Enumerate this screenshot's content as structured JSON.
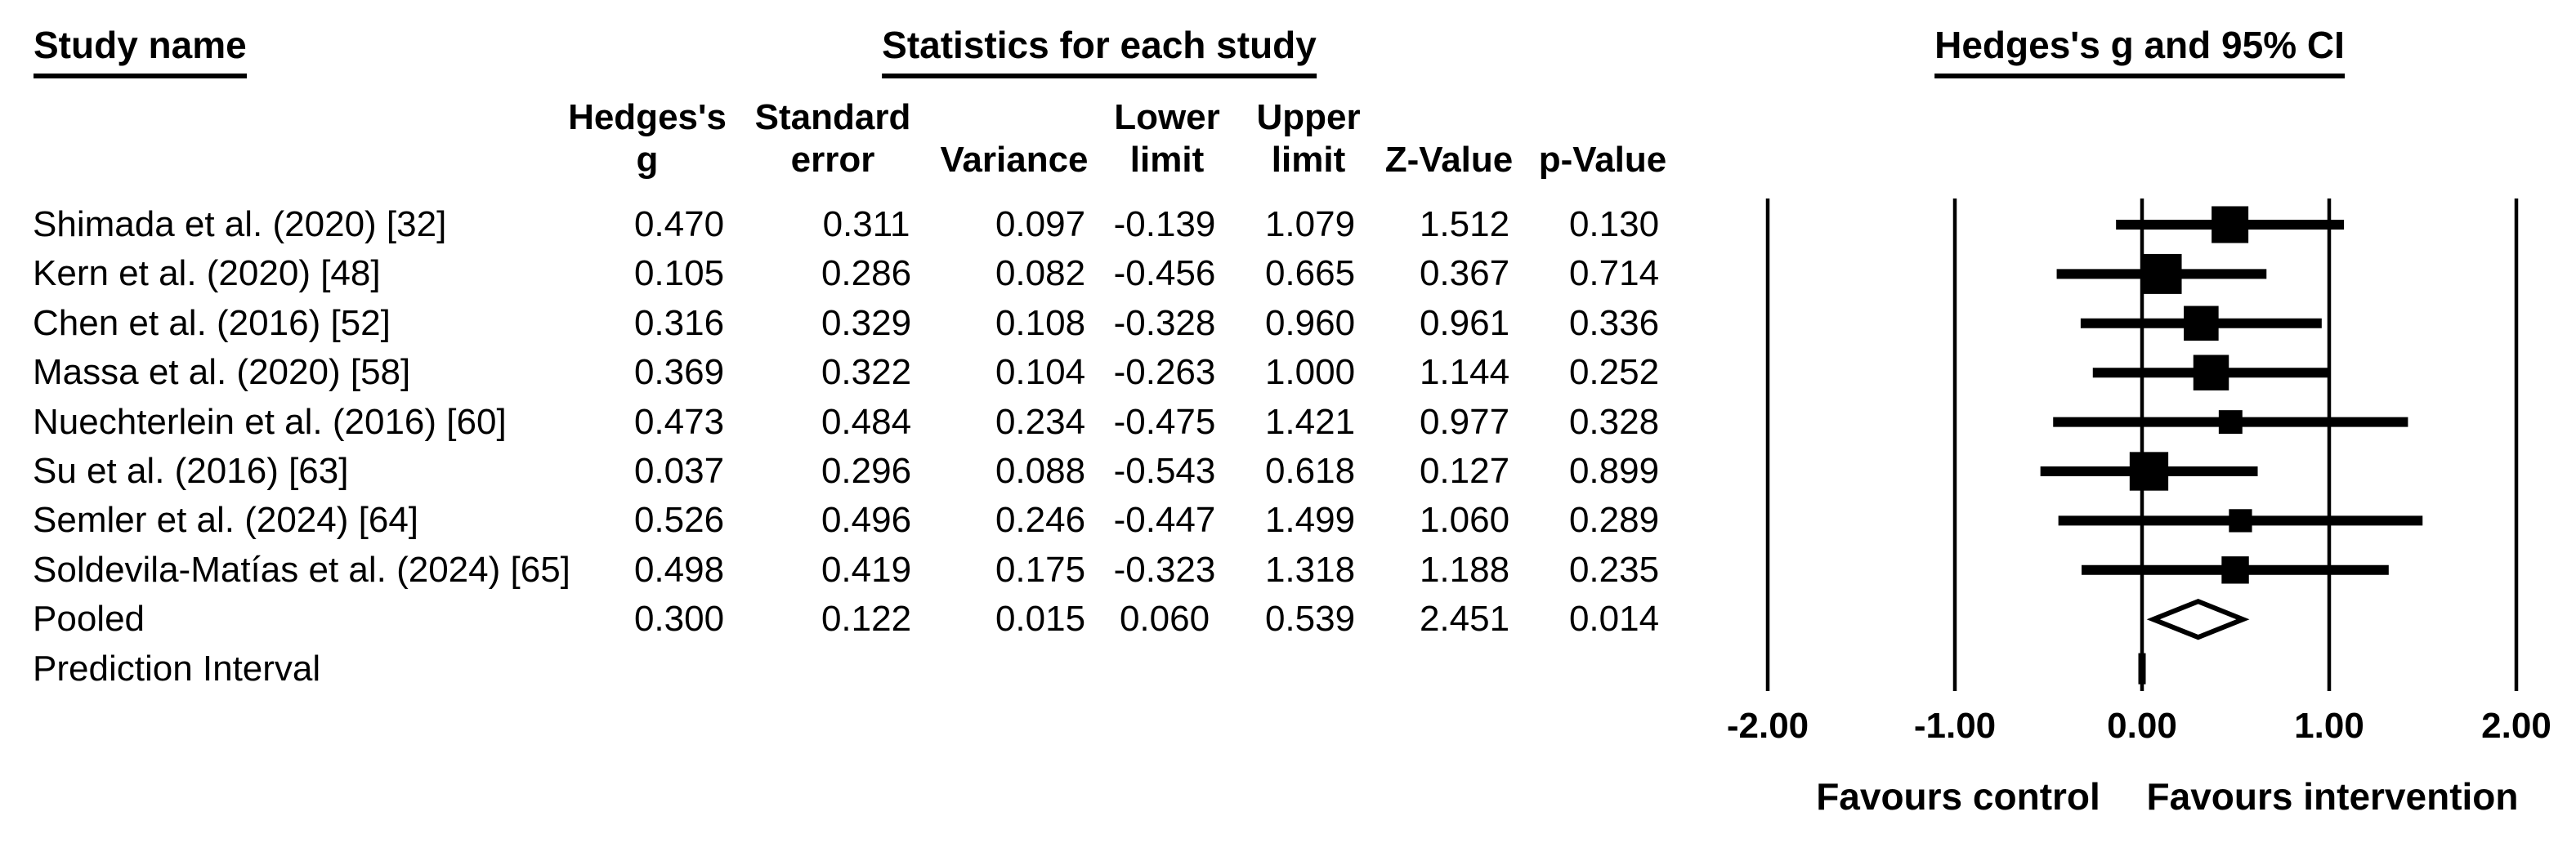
{
  "titles": {
    "left": "Study name",
    "center": "Statistics for each study",
    "right": "Hedges's g and 95% CI"
  },
  "table": {
    "columns": [
      {
        "id": "hedges_g",
        "line1": "Hedges's",
        "line2": "g"
      },
      {
        "id": "standard_error",
        "line1": "Standard",
        "line2": "error"
      },
      {
        "id": "variance",
        "line1": "",
        "line2": "Variance"
      },
      {
        "id": "lower_limit",
        "line1": "Lower",
        "line2": "limit"
      },
      {
        "id": "upper_limit",
        "line1": "Upper",
        "line2": "limit"
      },
      {
        "id": "z_value",
        "line1": "",
        "line2": "Z-Value"
      },
      {
        "id": "p_value",
        "line1": "",
        "line2": "p-Value"
      }
    ],
    "rows": [
      {
        "name": "Shimada et al. (2020) [32]",
        "values": [
          "0.470",
          "0.311",
          "0.097",
          "-0.139",
          "1.079",
          "1.512",
          "0.130"
        ]
      },
      {
        "name": "Kern et al. (2020) [48]",
        "values": [
          "0.105",
          "0.286",
          "0.082",
          "-0.456",
          "0.665",
          "0.367",
          "0.714"
        ]
      },
      {
        "name": "Chen et al. (2016) [52]",
        "values": [
          "0.316",
          "0.329",
          "0.108",
          "-0.328",
          "0.960",
          "0.961",
          "0.336"
        ]
      },
      {
        "name": "Massa et al. (2020) [58]",
        "values": [
          "0.369",
          "0.322",
          "0.104",
          "-0.263",
          "1.000",
          "1.144",
          "0.252"
        ]
      },
      {
        "name": "Nuechterlein et al. (2016) [60]",
        "values": [
          "0.473",
          "0.484",
          "0.234",
          "-0.475",
          "1.421",
          "0.977",
          "0.328"
        ]
      },
      {
        "name": "Su et al. (2016) [63]",
        "values": [
          "0.037",
          "0.296",
          "0.088",
          "-0.543",
          "0.618",
          "0.127",
          "0.899"
        ]
      },
      {
        "name": "Semler et al. (2024) [64]",
        "values": [
          "0.526",
          "0.496",
          "0.246",
          "-0.447",
          "1.499",
          "1.060",
          "0.289"
        ]
      },
      {
        "name": "Soldevila-Matías et al. (2024) [65]",
        "values": [
          "0.498",
          "0.419",
          "0.175",
          "-0.323",
          "1.318",
          "1.188",
          "0.235"
        ]
      },
      {
        "name": "Pooled",
        "values": [
          "0.300",
          "0.122",
          "0.015",
          "0.060",
          "0.539",
          "2.451",
          "0.014"
        ]
      },
      {
        "name": "Prediction Interval",
        "values": [
          "",
          "",
          "",
          "",
          "",
          "",
          ""
        ]
      }
    ]
  },
  "chart_data": {
    "type": "forest",
    "title": "Hedges's g and 95% CI",
    "effect_measure": "Hedges's g",
    "xlim": [
      -2,
      2
    ],
    "x_ticks": {
      "labels": [
        "-2.00",
        "-1.00",
        "0.00",
        "1.00",
        "2.00"
      ],
      "values": [
        -2,
        -1,
        0,
        1,
        2
      ]
    },
    "footer_left": "Favours control",
    "footer_right": "Favours intervention",
    "marker_study": "square",
    "marker_pooled": "diamond",
    "studies": [
      {
        "name": "Shimada et al. (2020) [32]",
        "g": 0.47,
        "se": 0.311,
        "variance": 0.097,
        "lower": -0.139,
        "upper": 1.079,
        "z": 1.512,
        "p": 0.13
      },
      {
        "name": "Kern et al. (2020) [48]",
        "g": 0.105,
        "se": 0.286,
        "variance": 0.082,
        "lower": -0.456,
        "upper": 0.665,
        "z": 0.367,
        "p": 0.714
      },
      {
        "name": "Chen et al. (2016) [52]",
        "g": 0.316,
        "se": 0.329,
        "variance": 0.108,
        "lower": -0.328,
        "upper": 0.96,
        "z": 0.961,
        "p": 0.336
      },
      {
        "name": "Massa et al. (2020) [58]",
        "g": 0.369,
        "se": 0.322,
        "variance": 0.104,
        "lower": -0.263,
        "upper": 1.0,
        "z": 1.144,
        "p": 0.252
      },
      {
        "name": "Nuechterlein et al. (2016) [60]",
        "g": 0.473,
        "se": 0.484,
        "variance": 0.234,
        "lower": -0.475,
        "upper": 1.421,
        "z": 0.977,
        "p": 0.328
      },
      {
        "name": "Su et al. (2016) [63]",
        "g": 0.037,
        "se": 0.296,
        "variance": 0.088,
        "lower": -0.543,
        "upper": 0.618,
        "z": 0.127,
        "p": 0.899
      },
      {
        "name": "Semler et al. (2024) [64]",
        "g": 0.526,
        "se": 0.496,
        "variance": 0.246,
        "lower": -0.447,
        "upper": 1.499,
        "z": 1.06,
        "p": 0.289
      },
      {
        "name": "Soldevila-Matías et al. (2024) [65]",
        "g": 0.498,
        "se": 0.419,
        "variance": 0.175,
        "lower": -0.323,
        "upper": 1.318,
        "z": 1.188,
        "p": 0.235
      }
    ],
    "pooled": {
      "name": "Pooled",
      "g": 0.3,
      "se": 0.122,
      "variance": 0.015,
      "lower": 0.06,
      "upper": 0.539,
      "z": 2.451,
      "p": 0.014
    },
    "prediction_interval": {
      "label": "Prediction Interval"
    },
    "colors": {
      "foreground": "#000000",
      "background": "#ffffff",
      "diamond_fill": "#ffffff"
    }
  }
}
